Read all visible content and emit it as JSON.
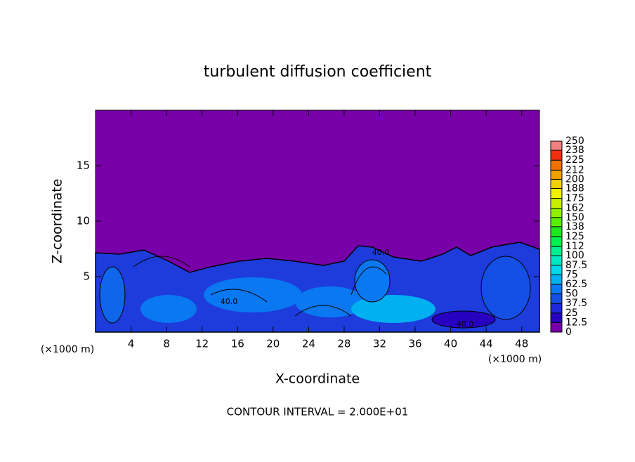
{
  "chart_data": {
    "type": "contour",
    "title": "turbulent diffusion coefficient",
    "xlabel": "X-coordinate",
    "ylabel": "Z-coordinate",
    "x_unit": "(×1000 m)",
    "footer": "CONTOUR INTERVAL = 2.000E+01",
    "xlim": [
      0,
      50
    ],
    "ylim": [
      0,
      20
    ],
    "xticks": [
      4,
      8,
      12,
      16,
      20,
      24,
      28,
      32,
      36,
      40,
      44,
      48
    ],
    "yticks": [
      5,
      10,
      15
    ],
    "colorbar_ticks": [
      0,
      12.5,
      25,
      37.5,
      50,
      62.5,
      75,
      87.5,
      100,
      112,
      125,
      138,
      150,
      162,
      175,
      188,
      200,
      212,
      225,
      238,
      250
    ],
    "colorbar_colors": [
      "#7800a8",
      "#2800c0",
      "#1e28d8",
      "#1450e6",
      "#0a78f0",
      "#00b0f0",
      "#00d8e8",
      "#00e8c0",
      "#00f090",
      "#00f050",
      "#20e820",
      "#58f000",
      "#90f000",
      "#c8f000",
      "#f0f000",
      "#f0d000",
      "#f0a000",
      "#f07000",
      "#f03010",
      "#f08080"
    ],
    "annotations": [
      "40.0",
      "40.0",
      "40.0"
    ]
  }
}
